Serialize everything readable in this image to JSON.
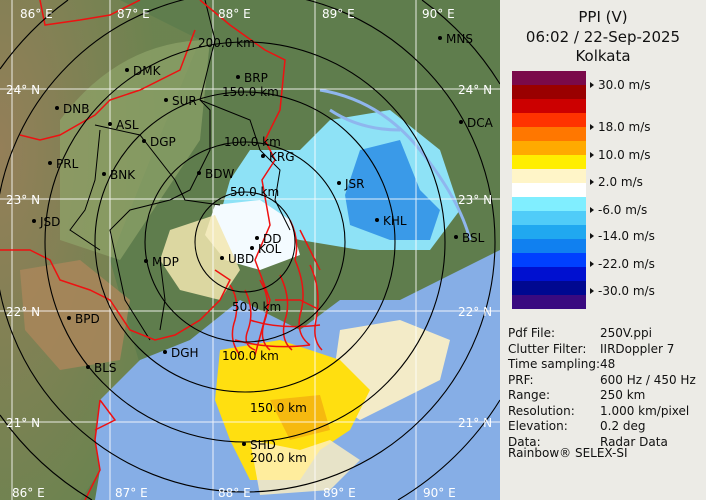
{
  "panel": {
    "product": "PPI (V)",
    "datetime": "06:02 / 22-Sep-2025",
    "site": "Kolkata",
    "legend": {
      "unit": "m/s",
      "colors": [
        "#7a0a4a",
        "#9a0000",
        "#cc0000",
        "#ff3300",
        "#ff7700",
        "#ffaa00",
        "#ffee00",
        "#fff5c8",
        "#ffffff",
        "#80eeff",
        "#50ccf8",
        "#20a8f0",
        "#1080f0",
        "#0040ff",
        "#0010d0",
        "#000890",
        "#3a0a80"
      ],
      "ticks": [
        "30.0 m/s",
        "18.0 m/s",
        "10.0 m/s",
        "2.0 m/s",
        "-6.0 m/s",
        "-14.0 m/s",
        "-22.0 m/s",
        "-30.0 m/s"
      ]
    },
    "info": [
      {
        "label": "Pdf File:",
        "value": "250V.ppi"
      },
      {
        "label": "Clutter Filter:",
        "value": "IIRDoppler 7"
      },
      {
        "label": "Time sampling:",
        "value": "48"
      },
      {
        "label": "PRF:",
        "value": "600 Hz / 450 Hz"
      },
      {
        "label": "Range:",
        "value": "250 km"
      },
      {
        "label": "Resolution:",
        "value": "1.000 km/pixel"
      },
      {
        "label": "Elevation:",
        "value": "0.2 deg"
      },
      {
        "label": "Data:",
        "value": "Radar Data"
      }
    ],
    "credit": "Rainbow® SELEX-SI"
  },
  "map": {
    "lon_labels": [
      "86° E",
      "87° E",
      "88° E",
      "89° E",
      "90° E"
    ],
    "lat_labels": [
      "24° N",
      "23° N",
      "22° N",
      "21° N"
    ],
    "range_labels": [
      "50.0 km",
      "100.0 km",
      "150.0 km",
      "200.0 km"
    ],
    "cities": [
      "DMK",
      "BRP",
      "SUR",
      "DNB",
      "ASL",
      "DGP",
      "KRG",
      "PRL",
      "BNK",
      "BDW",
      "JSR",
      "KHL",
      "JSD",
      "DD",
      "KOL",
      "UBD",
      "MDP",
      "BPD",
      "BLS",
      "DGH",
      "SHD",
      "MNS",
      "DCA",
      "BSL"
    ],
    "colors": {
      "land": "#5f7d4d",
      "terrain": "#a08a5c",
      "sea": "#86aee6",
      "rings": "#000000",
      "borders": "#ee1111",
      "grid": "#ffffff"
    }
  }
}
